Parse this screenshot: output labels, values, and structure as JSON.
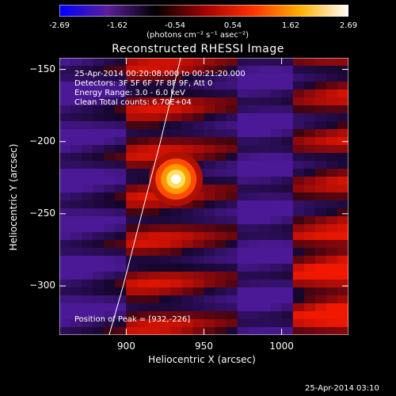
{
  "colorbar": {
    "ticks": [
      "-2.69",
      "-1.62",
      "-0.54",
      "0.54",
      "1.62",
      "2.69"
    ],
    "unit": "(photons cm⁻² s⁻¹ asec⁻²)",
    "range": [
      -2.69,
      2.69
    ],
    "colors": [
      "#0000ff",
      "#5a1f9a",
      "#000000",
      "#a00000",
      "#ff3000",
      "#ffb000",
      "#ffffff"
    ]
  },
  "chart_data": {
    "type": "heatmap",
    "title": "Reconstructed RHESSI Image",
    "xlabel": "Heliocentric X (arcsec)",
    "ylabel": "Heliocentric Y (arcsec)",
    "xlim": [
      857,
      1043
    ],
    "ylim": [
      -334,
      -142
    ],
    "xticks": [
      "900",
      "950",
      "1000"
    ],
    "yticks": [
      "-150",
      "-200",
      "-250",
      "-300"
    ],
    "xtick_values": [
      900,
      950,
      1000
    ],
    "ytick_values": [
      -150,
      -200,
      -250,
      -300
    ],
    "peak": {
      "x": 932,
      "y": -226
    },
    "annotations": [
      "25-Apr-2014 00:20:08.000 to 00:21:20.000",
      "Detectors: 3F 5F 6F 7F 8F 9F, Att 0",
      "Energy Range: 3.0 - 6.0 keV",
      "Clean     Total counts: 6.70E+04"
    ],
    "peak_label": "Position of Peak = [932,-226]",
    "limb": [
      [
        889,
        -334
      ],
      [
        898,
        -300
      ],
      [
        910,
        -250
      ],
      [
        922,
        -200
      ],
      [
        935,
        -142
      ]
    ]
  },
  "timestamp": "25-Apr-2014 03:10"
}
